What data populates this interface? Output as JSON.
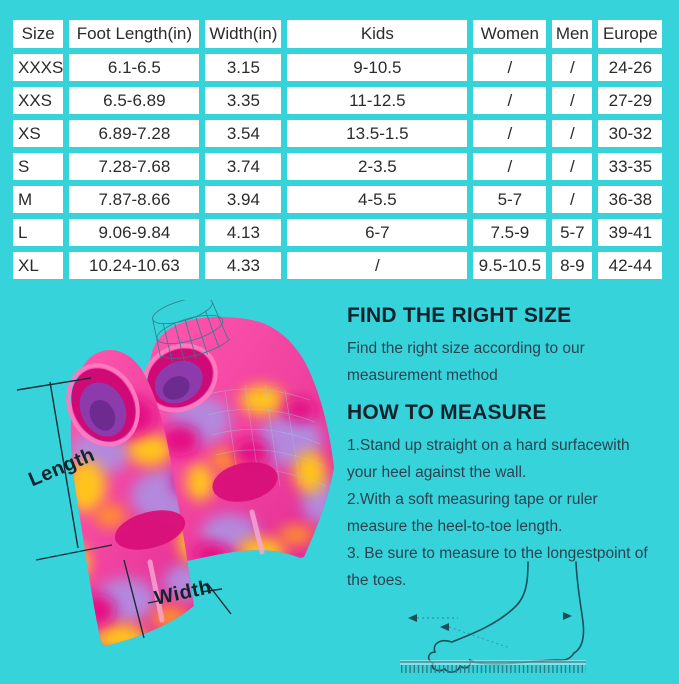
{
  "page": {
    "background_color": "#36d4da",
    "table_cell_color": "#ffffff",
    "heading_color": "#15222d",
    "body_text_color": "#2c4150"
  },
  "size_table": {
    "columns": [
      "Size",
      "Foot Length(in)",
      "Width(in)",
      "Kids",
      "Women",
      "Men",
      "Europe"
    ],
    "rows": [
      [
        "XXXS",
        "6.1-6.5",
        "3.15",
        "9-10.5",
        "/",
        "/",
        "24-26"
      ],
      [
        "XXS",
        "6.5-6.89",
        "3.35",
        "11-12.5",
        "/",
        "/",
        "27-29"
      ],
      [
        "XS",
        "6.89-7.28",
        "3.54",
        "13.5-1.5",
        "/",
        "/",
        "30-32"
      ],
      [
        "S",
        "7.28-7.68",
        "3.74",
        "2-3.5",
        "/",
        "/",
        "33-35"
      ],
      [
        "M",
        "7.87-8.66",
        "3.94",
        "4-5.5",
        "5-7",
        "/",
        "36-38"
      ],
      [
        "L",
        "9.06-9.84",
        "4.13",
        "6-7",
        "7.5-9",
        "5-7",
        "39-41"
      ],
      [
        "XL",
        "10.24-10.63",
        "4.33",
        "/",
        "9.5-10.5",
        "8-9",
        "42-44"
      ]
    ]
  },
  "product_figure": {
    "length_label": "Length",
    "width_label": "Width",
    "fin_colors": {
      "pink": "#f94ba6",
      "magenta": "#e50c84",
      "purple": "#b488dd",
      "yellow": "#ffc41f",
      "orange": "#ff8e2e"
    },
    "annotation_color": "#1b2b36"
  },
  "info": {
    "find_heading": "FIND THE RIGHT SIZE",
    "find_lines": [
      "Find the right size according to our",
      "measurement method"
    ],
    "how_heading": "HOW TO MEASURE",
    "step_lines": [
      "1.Stand up straight on a hard surfacewith",
      "your heel against the wall.",
      "2.With a soft measuring tape or ruler",
      "measure the heel-to-toe length.",
      "3. Be sure to measure to the longestpoint of",
      "the toes."
    ]
  }
}
